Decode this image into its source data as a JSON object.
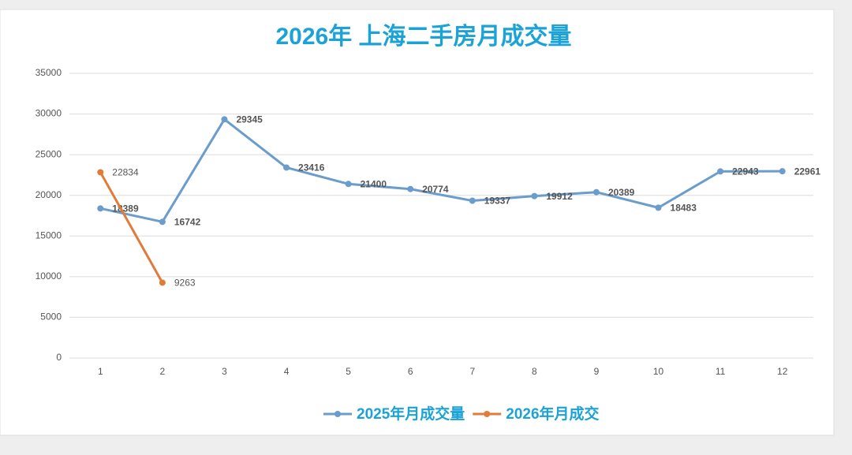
{
  "chart_data": {
    "type": "line",
    "title": "2026年 上海二手房月成交量",
    "categories": [
      "1",
      "2",
      "3",
      "4",
      "5",
      "6",
      "7",
      "8",
      "9",
      "10",
      "11",
      "12"
    ],
    "series": [
      {
        "name": "2025年月成交量",
        "color": "#6a9ccc",
        "label_color": "#1f9e4e",
        "values": [
          18389,
          16742,
          29345,
          23416,
          21400,
          20774,
          19337,
          19912,
          20389,
          18483,
          22943,
          22961
        ]
      },
      {
        "name": "2026年月成交",
        "color": "#e07b39",
        "label_color": "#333333",
        "values": [
          22834,
          9263,
          null,
          null,
          null,
          null,
          null,
          null,
          null,
          null,
          null,
          null
        ]
      }
    ],
    "ylim": [
      0,
      35000
    ],
    "yticks": [
      0,
      5000,
      10000,
      15000,
      20000,
      25000,
      30000,
      35000
    ],
    "grid": true,
    "legend": "bottom"
  }
}
